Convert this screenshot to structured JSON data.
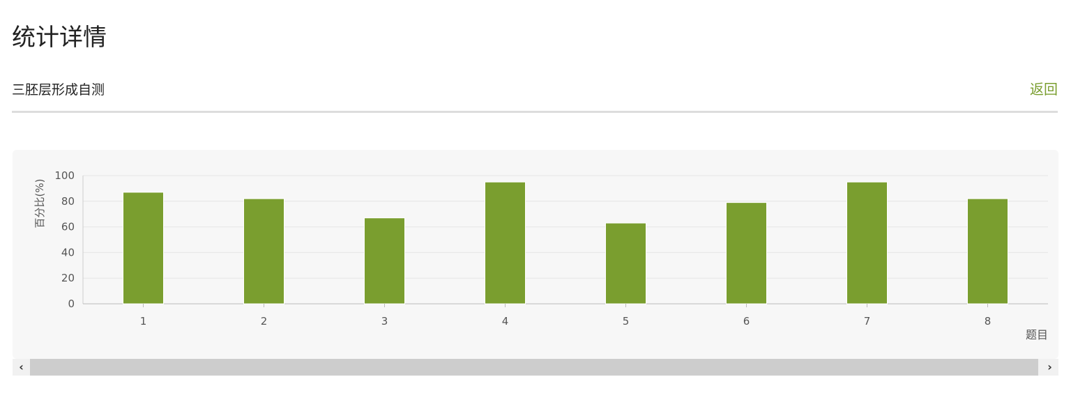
{
  "page": {
    "title": "统计详情",
    "subtitle": "三胚层形成自测",
    "back_label": "返回"
  },
  "colors": {
    "bar": "#7a9e2f",
    "accent": "#7a9e2f"
  },
  "chart_data": {
    "type": "bar",
    "categories": [
      "1",
      "2",
      "3",
      "4",
      "5",
      "6",
      "7",
      "8"
    ],
    "values": [
      87,
      82,
      67,
      95,
      63,
      79,
      95,
      82
    ],
    "xlabel": "题目",
    "ylabel": "百分比(%)",
    "ylim": [
      0,
      100
    ],
    "yticks": [
      0,
      20,
      40,
      60,
      80,
      100
    ],
    "grid": true,
    "legend": "none"
  },
  "scrollbar": {
    "left_icon": "chevron-left-icon",
    "right_icon": "chevron-right-icon"
  }
}
